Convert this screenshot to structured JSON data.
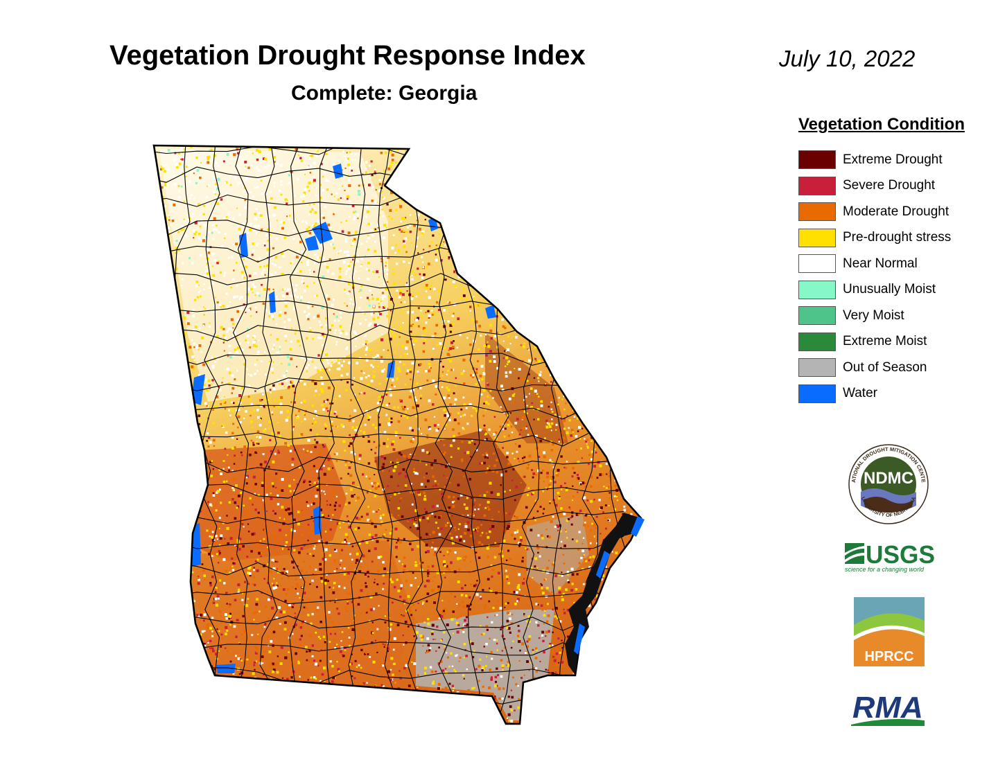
{
  "header": {
    "title": "Vegetation Drought Response Index",
    "subtitle": "Complete: Georgia",
    "date": "July 10, 2022"
  },
  "legend": {
    "title": "Vegetation Condition",
    "items": [
      {
        "label": "Extreme Drought",
        "color": "#6b0000"
      },
      {
        "label": "Severe Drought",
        "color": "#c8203a"
      },
      {
        "label": "Moderate Drought",
        "color": "#e86a00"
      },
      {
        "label": "Pre-drought stress",
        "color": "#ffe000"
      },
      {
        "label": "Near Normal",
        "color": "#ffffff"
      },
      {
        "label": "Unusually Moist",
        "color": "#86f7c6"
      },
      {
        "label": "Very Moist",
        "color": "#4fc48a"
      },
      {
        "label": "Extreme Moist",
        "color": "#2a8a3a"
      },
      {
        "label": "Out of Season",
        "color": "#b4b4b4"
      },
      {
        "label": "Water",
        "color": "#0a6cff"
      }
    ]
  },
  "logos": {
    "ndmc": {
      "text": "NDMC",
      "ring_top": "NATIONAL DROUGHT MITIGATION CENTER",
      "ring_bottom": "UNIVERSITY OF NEBRASKA"
    },
    "usgs": {
      "text": "USGS",
      "tagline": "science for a changing world"
    },
    "hprcc": {
      "text": "HPRCC"
    },
    "rma": {
      "text": "RMA"
    }
  },
  "map": {
    "region": "Georgia",
    "colors": {
      "white": "#ffffff",
      "yellow": "#ffe000",
      "orange": "#e86a00",
      "darkorange": "#d55410",
      "red": "#c8203a",
      "maroon": "#6b0000",
      "gray": "#b4b4b4",
      "water": "#0a6cff",
      "moist": "#86f7c6"
    }
  }
}
